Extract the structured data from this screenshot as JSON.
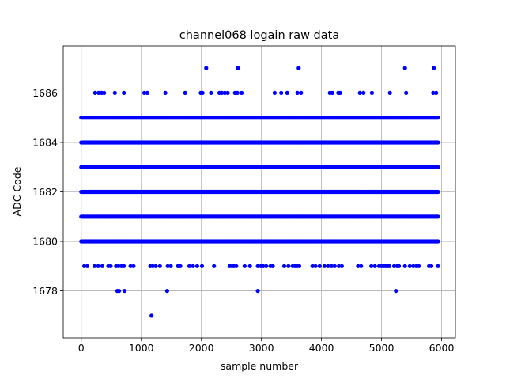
{
  "chart_data": {
    "type": "scatter",
    "title": "channel068 logain raw data",
    "xlabel": "sample number",
    "ylabel": "ADC Code",
    "xlim": [
      -300,
      6230
    ],
    "ylim": [
      1676.1,
      1687.9
    ],
    "xticks": [
      0,
      1000,
      2000,
      3000,
      4000,
      5000,
      6000
    ],
    "yticks": [
      1678,
      1680,
      1682,
      1684,
      1686
    ],
    "grid": true,
    "marker_color": "#0000ff",
    "series": [
      {
        "x_range": [
          0,
          5950
        ],
        "dense_levels": [
          1680,
          1681,
          1682,
          1683,
          1684,
          1685
        ],
        "sparse_points": {
          "1687": [
            2080,
            2610,
            3620,
            5390,
            5870
          ],
          "1686": [
            230,
            290,
            340,
            380,
            560,
            710,
            1050,
            1100,
            1400,
            1730,
            1990,
            2020,
            2160,
            2300,
            2340,
            2390,
            2440,
            2560,
            2600,
            2670,
            3220,
            3330,
            3430,
            3600,
            3660,
            4140,
            4180,
            4280,
            4310,
            4640,
            4700,
            4840,
            5140,
            5410,
            5860,
            5910
          ],
          "1679": [
            50,
            100,
            220,
            280,
            350,
            450,
            490,
            580,
            620,
            670,
            710,
            820,
            870,
            1150,
            1190,
            1240,
            1310,
            1440,
            1490,
            1610,
            1630,
            1650,
            1800,
            1860,
            1930,
            2010,
            2210,
            2470,
            2510,
            2540,
            2580,
            2720,
            2810,
            2940,
            2990,
            3030,
            3080,
            3150,
            3190,
            3380,
            3450,
            3520,
            3560,
            3590,
            3630,
            3850,
            3900,
            3970,
            4050,
            4110,
            4170,
            4220,
            4290,
            4340,
            4610,
            4660,
            4830,
            4890,
            4960,
            5000,
            5040,
            5070,
            5100,
            5130,
            5210,
            5260,
            5290,
            5390,
            5470,
            5530,
            5580,
            5620,
            5790,
            5830,
            5940
          ],
          "1678": [
            600,
            630,
            720,
            1430,
            2940,
            5240
          ],
          "1677": [
            1170
          ]
        }
      }
    ]
  }
}
